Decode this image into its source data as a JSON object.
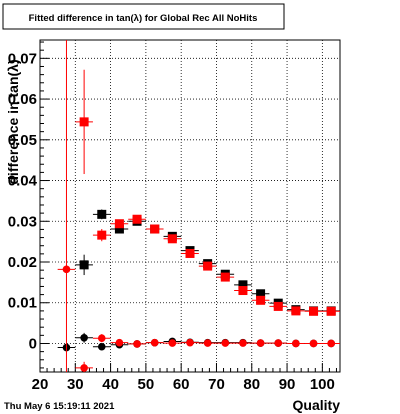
{
  "footer_timestamp": "Thu May  6 15:19:11 2021",
  "chart_data": {
    "type": "scatter",
    "title": "Fitted difference in tan(λ) for Global Rec All NoHits",
    "xlabel": "Quality",
    "ylabel": "difference in tan(λ)",
    "xlim": [
      20,
      105
    ],
    "ylim": [
      -0.007,
      0.0745
    ],
    "x_ticks": [
      20,
      30,
      40,
      50,
      60,
      70,
      80,
      90,
      100
    ],
    "x_tick_labels": [
      "20",
      "30",
      "40",
      "50",
      "60",
      "70",
      "80",
      "90",
      "100"
    ],
    "y_ticks": [
      0,
      0.01,
      0.02,
      0.03,
      0.04,
      0.05,
      0.06,
      0.07
    ],
    "y_tick_labels": [
      "0",
      "0.01",
      "0.02",
      "0.03",
      "0.04",
      "0.05",
      "0.06",
      "0.07"
    ],
    "grid": true,
    "legend": "none",
    "series": [
      {
        "marker": "square",
        "color": "#000000",
        "points": [
          {
            "x": 32.5,
            "y": 0.0193,
            "ey": 0.0025
          },
          {
            "x": 37.5,
            "y": 0.0317,
            "ey": 0.0012
          },
          {
            "x": 42.5,
            "y": 0.0281,
            "ey": 0.0008
          },
          {
            "x": 47.5,
            "y": 0.03,
            "ey": 0.0007
          },
          {
            "x": 52.5,
            "y": 0.0281,
            "ey": 0.0006
          },
          {
            "x": 57.5,
            "y": 0.0263,
            "ey": 0.0006
          },
          {
            "x": 62.5,
            "y": 0.0228,
            "ey": 0.0005
          },
          {
            "x": 67.5,
            "y": 0.0196,
            "ey": 0.0005
          },
          {
            "x": 72.5,
            "y": 0.017,
            "ey": 0.0005
          },
          {
            "x": 77.5,
            "y": 0.0144,
            "ey": 0.0004
          },
          {
            "x": 82.5,
            "y": 0.0122,
            "ey": 0.0004
          },
          {
            "x": 87.5,
            "y": 0.0099,
            "ey": 0.0004
          },
          {
            "x": 92.5,
            "y": 0.0083,
            "ey": 0.0004
          },
          {
            "x": 97.5,
            "y": 0.008,
            "ey": 0.0004
          },
          {
            "x": 102.5,
            "y": 0.008,
            "ey": 0.0004
          }
        ]
      },
      {
        "marker": "square",
        "color": "#ff0000",
        "points": [
          {
            "x": 32.5,
            "y": 0.0544,
            "ey": 0.0128
          },
          {
            "x": 37.5,
            "y": 0.0266,
            "ey": 0.0015
          },
          {
            "x": 42.5,
            "y": 0.0294,
            "ey": 0.0009
          },
          {
            "x": 47.5,
            "y": 0.0305,
            "ey": 0.0007
          },
          {
            "x": 52.5,
            "y": 0.0281,
            "ey": 0.0006
          },
          {
            "x": 57.5,
            "y": 0.0257,
            "ey": 0.0006
          },
          {
            "x": 62.5,
            "y": 0.0221,
            "ey": 0.0005
          },
          {
            "x": 67.5,
            "y": 0.019,
            "ey": 0.0005
          },
          {
            "x": 72.5,
            "y": 0.0163,
            "ey": 0.0005
          },
          {
            "x": 77.5,
            "y": 0.013,
            "ey": 0.0004
          },
          {
            "x": 82.5,
            "y": 0.0106,
            "ey": 0.0004
          },
          {
            "x": 87.5,
            "y": 0.0091,
            "ey": 0.0004
          },
          {
            "x": 92.5,
            "y": 0.008,
            "ey": 0.0004
          },
          {
            "x": 97.5,
            "y": 0.0079,
            "ey": 0.0004
          },
          {
            "x": 102.5,
            "y": 0.0079,
            "ey": 0.0004
          }
        ]
      },
      {
        "marker": "circle",
        "color": "#000000",
        "points": [
          {
            "x": 27.5,
            "y": -0.001,
            "ey": 0.0
          },
          {
            "x": 32.5,
            "y": 0.0014,
            "ey": 0.0012
          },
          {
            "x": 37.5,
            "y": -0.0008,
            "ey": 0.0008
          },
          {
            "x": 42.5,
            "y": -0.0003,
            "ey": 0.0005
          },
          {
            "x": 47.5,
            "y": -0.0001,
            "ey": 0.0004
          },
          {
            "x": 52.5,
            "y": 0.0002,
            "ey": 0.0004
          },
          {
            "x": 57.5,
            "y": 0.0005,
            "ey": 0.0004
          },
          {
            "x": 62.5,
            "y": 0.0003,
            "ey": 0.0003
          },
          {
            "x": 67.5,
            "y": 0.0002,
            "ey": 0.0003
          },
          {
            "x": 72.5,
            "y": 0.0002,
            "ey": 0.0003
          },
          {
            "x": 77.5,
            "y": 0.0002,
            "ey": 0.0003
          },
          {
            "x": 82.5,
            "y": 0.0001,
            "ey": 0.0003
          },
          {
            "x": 87.5,
            "y": 0.0001,
            "ey": 0.0003
          },
          {
            "x": 92.5,
            "y": 0.0,
            "ey": 0.0003
          },
          {
            "x": 97.5,
            "y": 0.0,
            "ey": 0.0003
          },
          {
            "x": 102.5,
            "y": 0.0,
            "ey": 0.0003
          }
        ]
      },
      {
        "marker": "circle",
        "color": "#ff0000",
        "points": [
          {
            "x": 27.5,
            "y": 0.0182,
            "ey": 0.08
          },
          {
            "x": 32.5,
            "y": -0.006,
            "ey": 0.0015
          },
          {
            "x": 37.5,
            "y": 0.0013,
            "ey": 0.001
          },
          {
            "x": 42.5,
            "y": 0.0002,
            "ey": 0.0006
          },
          {
            "x": 47.5,
            "y": -0.0001,
            "ey": 0.0005
          },
          {
            "x": 52.5,
            "y": 0.0002,
            "ey": 0.0004
          },
          {
            "x": 57.5,
            "y": 0.0001,
            "ey": 0.0004
          },
          {
            "x": 62.5,
            "y": 0.0002,
            "ey": 0.0003
          },
          {
            "x": 67.5,
            "y": 0.0001,
            "ey": 0.0003
          },
          {
            "x": 72.5,
            "y": 0.0001,
            "ey": 0.0003
          },
          {
            "x": 77.5,
            "y": 0.0001,
            "ey": 0.0003
          },
          {
            "x": 82.5,
            "y": 0.0001,
            "ey": 0.0003
          },
          {
            "x": 87.5,
            "y": 0.0001,
            "ey": 0.0003
          },
          {
            "x": 92.5,
            "y": 0.0,
            "ey": 0.0003
          },
          {
            "x": 97.5,
            "y": 0.0,
            "ey": 0.0003
          },
          {
            "x": 102.5,
            "y": 0.0,
            "ey": 0.0003
          }
        ]
      }
    ]
  }
}
